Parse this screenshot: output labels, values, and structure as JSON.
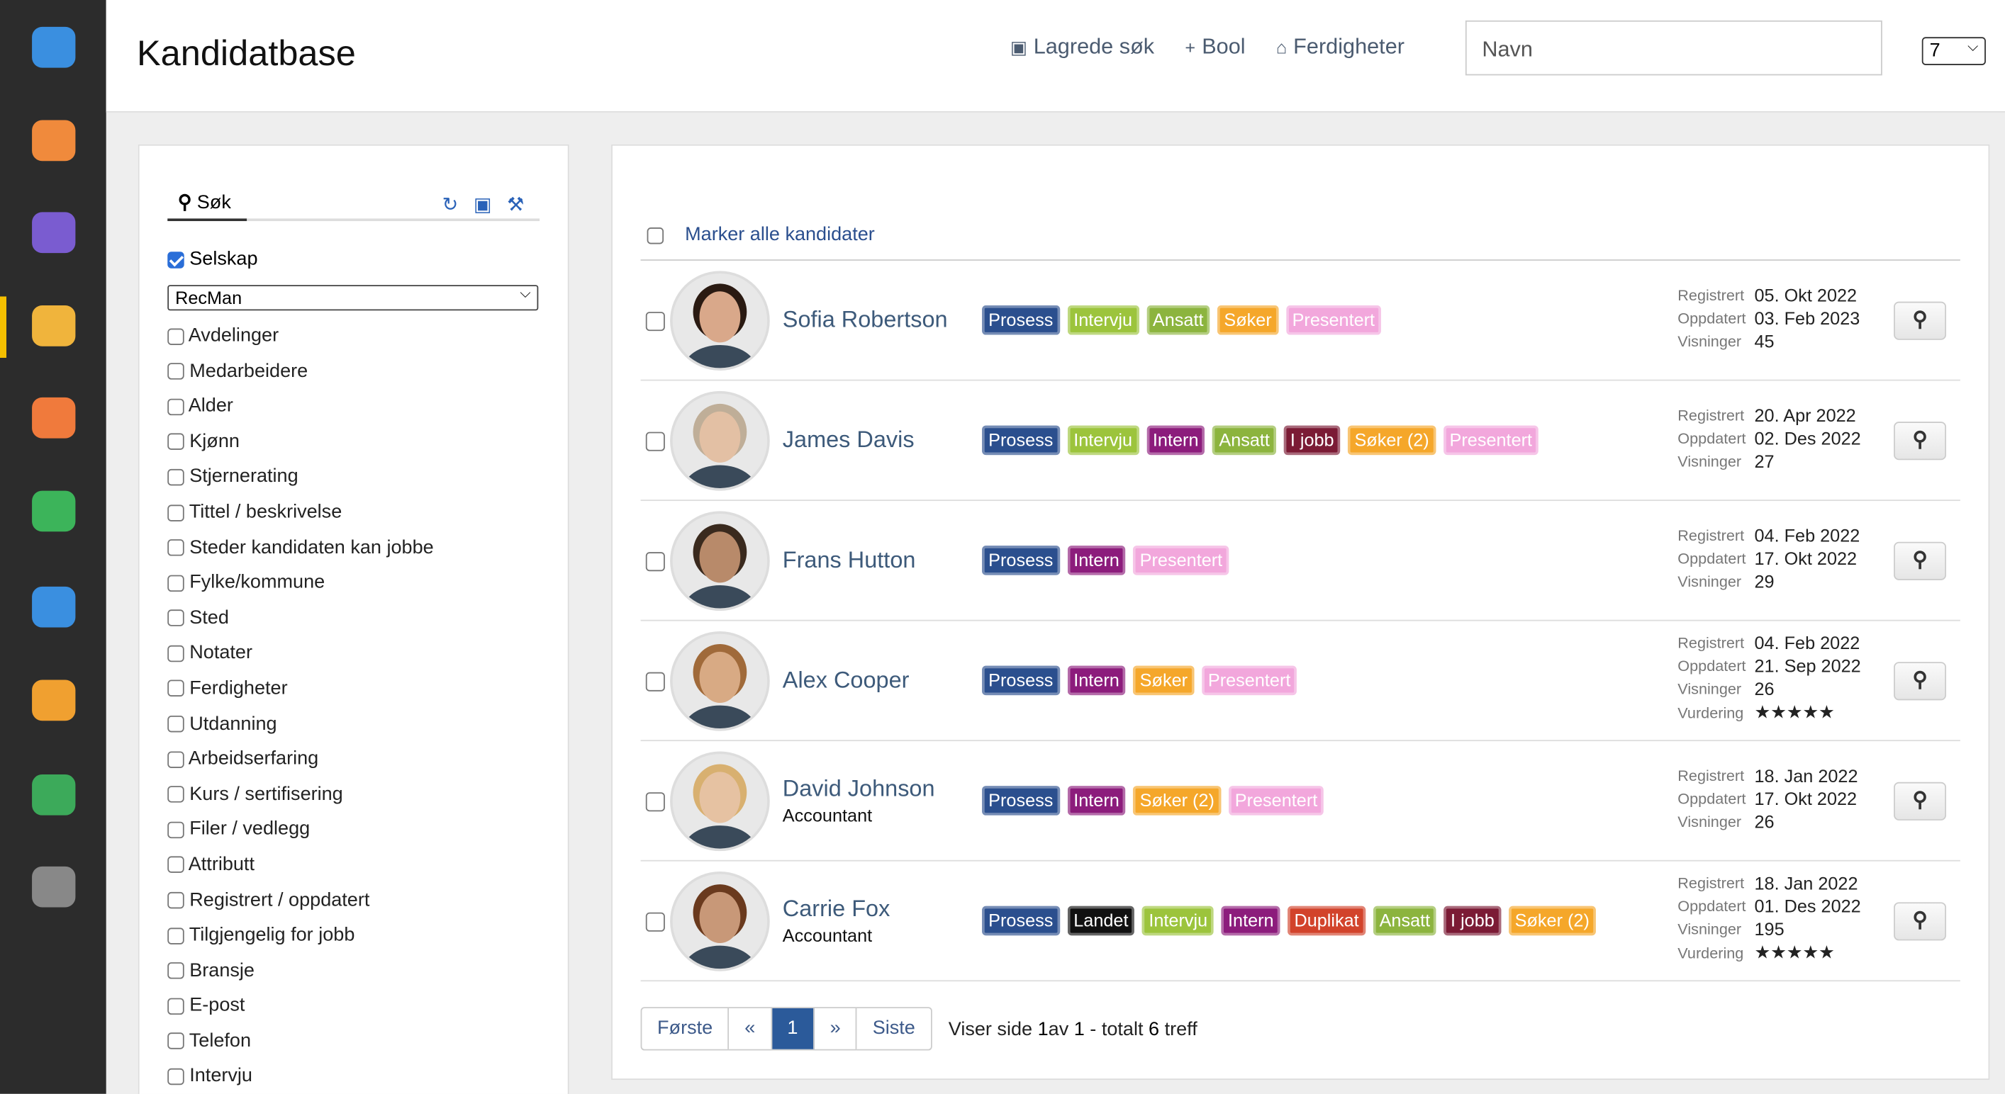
{
  "header": {
    "title": "Kandidatbase",
    "links": [
      "Lagrede søk",
      "Bool",
      "Ferdigheter"
    ],
    "search_placeholder": "Navn",
    "page_size": "7"
  },
  "sidebar": {
    "tab": "Søk",
    "company_label": "Selskap",
    "company_value": "RecMan",
    "filters": [
      "Avdelinger",
      "Medarbeidere",
      "Alder",
      "Kjønn",
      "Stjernerating",
      "Tittel / beskrivelse",
      "Steder kandidaten kan jobbe",
      "Fylke/kommune",
      "Sted",
      "Notater",
      "Ferdigheter",
      "Utdanning",
      "Arbeidserfaring",
      "Kurs / sertifisering",
      "Filer / vedlegg",
      "Attributt",
      "Registrert / oppdatert",
      "Tilgjengelig for jobb",
      "Bransje",
      "E-post",
      "Telefon",
      "Intervju"
    ]
  },
  "candidates": {
    "select_all": "Marker alle kandidater",
    "rows": [
      {
        "name": "Sofia Robertson",
        "tags": [
          {
            "label": "Prosess",
            "color": "#2b4f8e"
          },
          {
            "label": "Intervju",
            "color": "#9cc43c"
          },
          {
            "label": "Ansatt",
            "color": "#8cb43e"
          },
          {
            "label": "Søker",
            "color": "#f5a72a"
          },
          {
            "label": "Presentert",
            "color": "#f2a7dc"
          }
        ],
        "meta": [
          {
            "label": "Registrert",
            "value": "05. Okt 2022"
          },
          {
            "label": "Oppdatert",
            "value": "03. Feb 2023"
          },
          {
            "label": "Visninger",
            "value": "45"
          }
        ]
      },
      {
        "name": "James Davis",
        "tags": [
          {
            "label": "Prosess",
            "color": "#2b4f8e"
          },
          {
            "label": "Intervju",
            "color": "#9cc43c"
          },
          {
            "label": "Intern",
            "color": "#8c1c7c"
          },
          {
            "label": "Ansatt",
            "color": "#8cb43e"
          },
          {
            "label": "I jobb",
            "color": "#7b1b35"
          },
          {
            "label": "Søker (2)",
            "color": "#f5a72a"
          },
          {
            "label": "Presentert",
            "color": "#f2a7dc"
          }
        ],
        "meta": [
          {
            "label": "Registrert",
            "value": "20. Apr 2022"
          },
          {
            "label": "Oppdatert",
            "value": "02. Des 2022"
          },
          {
            "label": "Visninger",
            "value": "27"
          }
        ]
      },
      {
        "name": "Frans Hutton",
        "tags": [
          {
            "label": "Prosess",
            "color": "#2b4f8e"
          },
          {
            "label": "Intern",
            "color": "#8c1c7c"
          },
          {
            "label": "Presentert",
            "color": "#f2a7dc"
          }
        ],
        "meta": [
          {
            "label": "Registrert",
            "value": "04. Feb 2022"
          },
          {
            "label": "Oppdatert",
            "value": "17. Okt 2022"
          },
          {
            "label": "Visninger",
            "value": "29"
          }
        ]
      },
      {
        "name": "Alex Cooper",
        "tags": [
          {
            "label": "Prosess",
            "color": "#2b4f8e"
          },
          {
            "label": "Intern",
            "color": "#8c1c7c"
          },
          {
            "label": "Søker",
            "color": "#f5a72a"
          },
          {
            "label": "Presentert",
            "color": "#f2a7dc"
          }
        ],
        "meta": [
          {
            "label": "Registrert",
            "value": "04. Feb 2022"
          },
          {
            "label": "Oppdatert",
            "value": "21. Sep 2022"
          },
          {
            "label": "Visninger",
            "value": "26"
          },
          {
            "label": "Vurdering",
            "value": "★★★★★"
          }
        ]
      },
      {
        "name": "David Johnson",
        "title": "Accountant",
        "tags": [
          {
            "label": "Prosess",
            "color": "#2b4f8e"
          },
          {
            "label": "Intern",
            "color": "#8c1c7c"
          },
          {
            "label": "Søker (2)",
            "color": "#f5a72a"
          },
          {
            "label": "Presentert",
            "color": "#f2a7dc"
          }
        ],
        "meta": [
          {
            "label": "Registrert",
            "value": "18. Jan 2022"
          },
          {
            "label": "Oppdatert",
            "value": "17. Okt 2022"
          },
          {
            "label": "Visninger",
            "value": "26"
          }
        ]
      },
      {
        "name": "Carrie Fox",
        "title": "Accountant",
        "tags": [
          {
            "label": "Prosess",
            "color": "#2b4f8e"
          },
          {
            "label": "Landet",
            "color": "#111111"
          },
          {
            "label": "Intervju",
            "color": "#9cc43c"
          },
          {
            "label": "Intern",
            "color": "#8c1c7c"
          },
          {
            "label": "Duplikat",
            "color": "#d2432b"
          },
          {
            "label": "Ansatt",
            "color": "#8cb43e"
          },
          {
            "label": "I jobb",
            "color": "#7b1b35"
          },
          {
            "label": "Søker (2)",
            "color": "#f5a72a"
          }
        ],
        "meta": [
          {
            "label": "Registrert",
            "value": "18. Jan 2022"
          },
          {
            "label": "Oppdatert",
            "value": "01. Des 2022"
          },
          {
            "label": "Visninger",
            "value": "195"
          },
          {
            "label": "Vurdering",
            "value": "★★★★★"
          }
        ]
      }
    ]
  },
  "pagination": {
    "buttons": [
      "Første",
      "«",
      "1",
      "»",
      "Siste"
    ],
    "active": 2,
    "summary": [
      "Viser side ",
      "1",
      "av ",
      "1",
      " - totalt ",
      "6",
      " treff"
    ]
  }
}
